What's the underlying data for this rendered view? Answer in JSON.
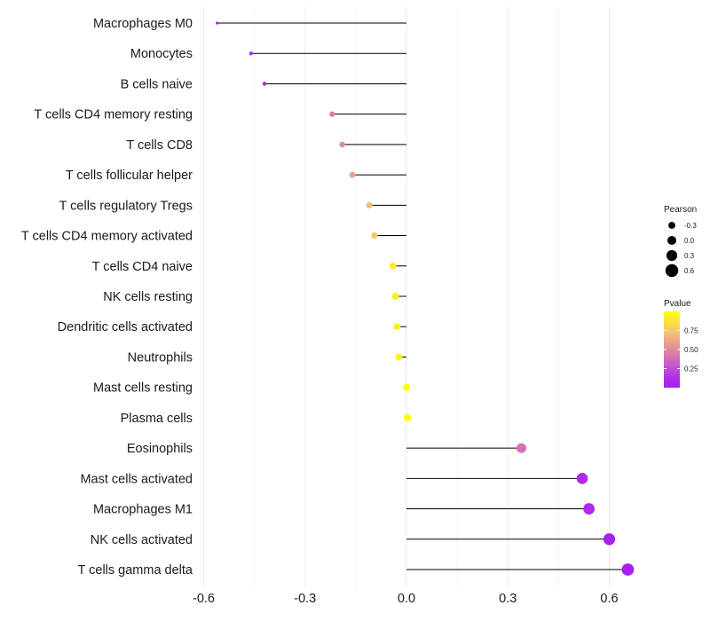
{
  "chart_data": {
    "type": "lollipop",
    "title": "",
    "xlabel": "",
    "ylabel": "",
    "xlim": [
      -0.6,
      0.7
    ],
    "xticks": [
      -0.6,
      -0.3,
      0.0,
      0.3,
      0.6
    ],
    "xtick_labels": [
      "-0.6",
      "-0.3",
      "0.0",
      "0.3",
      "0.6"
    ],
    "grid": true,
    "categories": [
      "Macrophages M0",
      "Monocytes",
      "B cells naive",
      "T cells CD4 memory resting",
      "T cells CD8",
      "T cells follicular helper",
      "T cells regulatory  Tregs ",
      "T cells CD4 memory activated",
      "T cells CD4 naive",
      "NK cells resting",
      "Dendritic cells activated",
      "Neutrophils",
      "Mast cells resting",
      "Plasma cells",
      "Eosinophils",
      "Mast cells activated",
      "Macrophages M1",
      "NK cells activated",
      "T cells gamma delta"
    ],
    "pearson": [
      -0.56,
      -0.46,
      -0.42,
      -0.22,
      -0.19,
      -0.16,
      -0.11,
      -0.095,
      -0.04,
      -0.033,
      -0.028,
      -0.023,
      0.0,
      0.003,
      0.34,
      0.52,
      0.54,
      0.6,
      0.655
    ],
    "pvalue": [
      0.0,
      0.08,
      0.08,
      0.45,
      0.5,
      0.58,
      0.7,
      0.75,
      0.9,
      0.91,
      0.93,
      0.95,
      1.0,
      1.0,
      0.4,
      0.1,
      0.1,
      0.01,
      0.005
    ],
    "legend_size": {
      "title": "Pearson",
      "values": [
        -0.3,
        0.0,
        0.3,
        0.6
      ],
      "labels": [
        "-0.3",
        "0.0",
        "0.3",
        "0.6"
      ]
    },
    "legend_color": {
      "title": "Pvalue",
      "range": [
        0.0,
        1.0
      ],
      "ticks": [
        0.25,
        0.5,
        0.75
      ],
      "tick_labels": [
        "0.25",
        "0.50",
        "0.75"
      ],
      "color_low": "#a020f0",
      "color_high": "#ffff00",
      "colors": [
        "#a51ff0",
        "#b42ee8",
        "#c756d0",
        "#d977ac",
        "#e79c8e",
        "#f2c17a",
        "#fbe042",
        "#ffff00"
      ]
    },
    "stem_color": "#000000",
    "gridline_color": "#ebebeb",
    "legend_placement": "right"
  }
}
